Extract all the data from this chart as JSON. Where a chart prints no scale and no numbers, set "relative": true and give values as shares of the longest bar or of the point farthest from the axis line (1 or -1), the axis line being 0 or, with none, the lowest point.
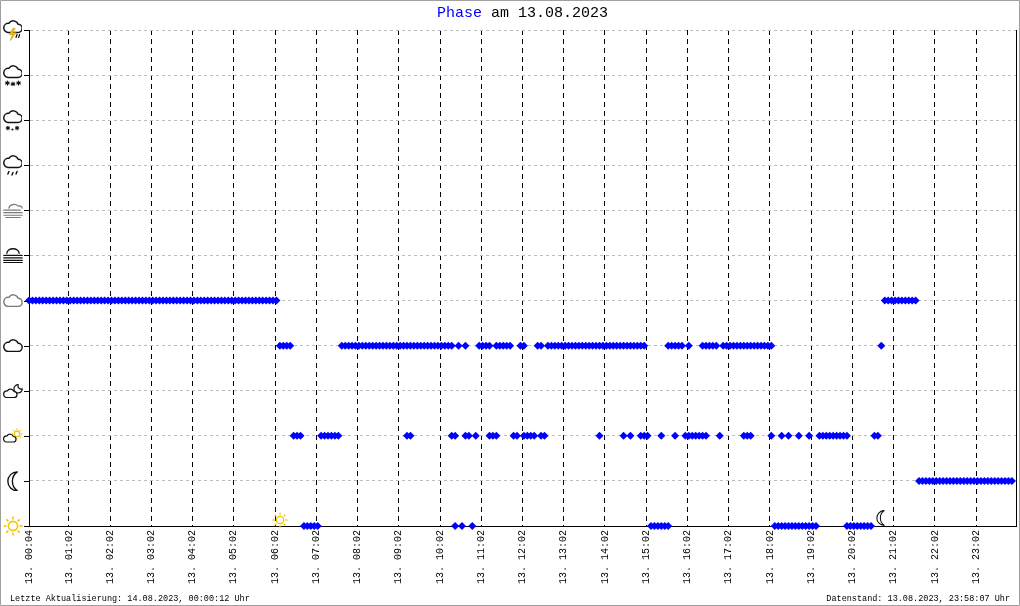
{
  "chart_data": {
    "type": "scatter",
    "title": "Phase am 13.08.2023",
    "annotations": [
      "Letzte Aktualisierung: 14.08.2023, 00:00:12 Uhr",
      "Datenstand: 13.08.2023, 23:58:07 Uhr"
    ],
    "color": "#0000ff",
    "marker": "diamond",
    "grid": true,
    "tick_labels": "x",
    "relative": true,
    "xlim": [
      "2023-08-13T00:04",
      "2023-08-14T00:00"
    ],
    "xticks": [
      {
        "value": "2023-08-13T00:04",
        "label": "13. 00:04"
      },
      {
        "value": "2023-08-13T01:02",
        "label": "13. 01:02"
      },
      {
        "value": "2023-08-13T02:02",
        "label": "13. 02:02"
      },
      {
        "value": "2023-08-13T03:02",
        "label": "13. 03:02"
      },
      {
        "value": "2023-08-13T04:02",
        "label": "13. 04:02"
      },
      {
        "value": "2023-08-13T05:02",
        "label": "13. 05:02"
      },
      {
        "value": "2023-08-13T06:02",
        "label": "13. 06:02"
      },
      {
        "value": "2023-08-13T07:02",
        "label": "13. 07:02"
      },
      {
        "value": "2023-08-13T08:02",
        "label": "13. 08:02"
      },
      {
        "value": "2023-08-13T09:02",
        "label": "13. 09:02"
      },
      {
        "value": "2023-08-13T10:02",
        "label": "13. 10:02"
      },
      {
        "value": "2023-08-13T11:02",
        "label": "13. 11:02"
      },
      {
        "value": "2023-08-13T12:02",
        "label": "13. 12:02"
      },
      {
        "value": "2023-08-13T13:02",
        "label": "13. 13:02"
      },
      {
        "value": "2023-08-13T14:02",
        "label": "13. 14:02"
      },
      {
        "value": "2023-08-13T15:02",
        "label": "13. 15:02"
      },
      {
        "value": "2023-08-13T16:02",
        "label": "13. 16:02"
      },
      {
        "value": "2023-08-13T17:02",
        "label": "13. 17:02"
      },
      {
        "value": "2023-08-13T18:02",
        "label": "13. 18:02"
      },
      {
        "value": "2023-08-13T19:02",
        "label": "13. 19:02"
      },
      {
        "value": "2023-08-13T20:02",
        "label": "13. 20:02"
      },
      {
        "value": "2023-08-13T21:02",
        "label": "13. 21:02"
      },
      {
        "value": "2023-08-13T22:02",
        "label": "13. 22:02"
      },
      {
        "value": "2023-08-13T23:02",
        "label": "13. 23:02"
      }
    ],
    "x": [
      "2023-08-13T00:04",
      "2023-08-13T00:09",
      "2023-08-13T00:14",
      "2023-08-13T00:19",
      "2023-08-13T00:24",
      "2023-08-13T00:29",
      "2023-08-13T00:34",
      "2023-08-13T00:39",
      "2023-08-13T00:44",
      "2023-08-13T00:49",
      "2023-08-13T00:54",
      "2023-08-13T00:59",
      "2023-08-13T01:04",
      "2023-08-13T01:09",
      "2023-08-13T01:14",
      "2023-08-13T01:19",
      "2023-08-13T01:24",
      "2023-08-13T01:29",
      "2023-08-13T01:34",
      "2023-08-13T01:39",
      "2023-08-13T01:44",
      "2023-08-13T01:49",
      "2023-08-13T01:54",
      "2023-08-13T01:59",
      "2023-08-13T02:04",
      "2023-08-13T02:09",
      "2023-08-13T02:14",
      "2023-08-13T02:19",
      "2023-08-13T02:24",
      "2023-08-13T02:29",
      "2023-08-13T02:34",
      "2023-08-13T02:39",
      "2023-08-13T02:44",
      "2023-08-13T02:49",
      "2023-08-13T02:54",
      "2023-08-13T02:59",
      "2023-08-13T03:04",
      "2023-08-13T03:09",
      "2023-08-13T03:14",
      "2023-08-13T03:19",
      "2023-08-13T03:24",
      "2023-08-13T03:29",
      "2023-08-13T03:34",
      "2023-08-13T03:39",
      "2023-08-13T03:44",
      "2023-08-13T03:49",
      "2023-08-13T03:54",
      "2023-08-13T03:59",
      "2023-08-13T04:04",
      "2023-08-13T04:09",
      "2023-08-13T04:14",
      "2023-08-13T04:19",
      "2023-08-13T04:24",
      "2023-08-13T04:29",
      "2023-08-13T04:34",
      "2023-08-13T04:39",
      "2023-08-13T04:44",
      "2023-08-13T04:49",
      "2023-08-13T04:54",
      "2023-08-13T04:59",
      "2023-08-13T05:04",
      "2023-08-13T05:09",
      "2023-08-13T05:14",
      "2023-08-13T05:19",
      "2023-08-13T05:24",
      "2023-08-13T05:29",
      "2023-08-13T05:34",
      "2023-08-13T05:39",
      "2023-08-13T05:44",
      "2023-08-13T05:49",
      "2023-08-13T05:54",
      "2023-08-13T05:59",
      "2023-08-13T06:04",
      "2023-08-13T06:09",
      "2023-08-13T06:14",
      "2023-08-13T06:19",
      "2023-08-13T06:24",
      "2023-08-13T06:29",
      "2023-08-13T06:34",
      "2023-08-13T06:39",
      "2023-08-13T06:44",
      "2023-08-13T06:49",
      "2023-08-13T06:54",
      "2023-08-13T06:59",
      "2023-08-13T07:04",
      "2023-08-13T07:09",
      "2023-08-13T07:14",
      "2023-08-13T07:19",
      "2023-08-13T07:24",
      "2023-08-13T07:29",
      "2023-08-13T07:34",
      "2023-08-13T07:39",
      "2023-08-13T07:44",
      "2023-08-13T07:49",
      "2023-08-13T07:54",
      "2023-08-13T07:59",
      "2023-08-13T08:04",
      "2023-08-13T08:09",
      "2023-08-13T08:14",
      "2023-08-13T08:19",
      "2023-08-13T08:24",
      "2023-08-13T08:29",
      "2023-08-13T08:34",
      "2023-08-13T08:39",
      "2023-08-13T08:44",
      "2023-08-13T08:49",
      "2023-08-13T08:54",
      "2023-08-13T08:59",
      "2023-08-13T09:04",
      "2023-08-13T09:09",
      "2023-08-13T09:14",
      "2023-08-13T09:19",
      "2023-08-13T09:24",
      "2023-08-13T09:29",
      "2023-08-13T09:34",
      "2023-08-13T09:39",
      "2023-08-13T09:44",
      "2023-08-13T09:49",
      "2023-08-13T09:54",
      "2023-08-13T09:59",
      "2023-08-13T10:04",
      "2023-08-13T10:09",
      "2023-08-13T10:14",
      "2023-08-13T10:19",
      "2023-08-13T09:14",
      "2023-08-13T09:19",
      "2023-08-13T10:19",
      "2023-08-13T10:24",
      "2023-08-13T10:24",
      "2023-08-13T10:29",
      "2023-08-13T10:34",
      "2023-08-13T10:39",
      "2023-08-13T10:39",
      "2023-08-13T10:44",
      "2023-08-13T10:49",
      "2023-08-13T10:54",
      "2023-08-13T10:59",
      "2023-08-13T11:04",
      "2023-08-13T11:09",
      "2023-08-13T11:14",
      "2023-08-13T11:14",
      "2023-08-13T11:19",
      "2023-08-13T11:24",
      "2023-08-13T11:24",
      "2023-08-13T11:29",
      "2023-08-13T11:34",
      "2023-08-13T11:39",
      "2023-08-13T11:44",
      "2023-08-13T11:49",
      "2023-08-13T11:54",
      "2023-08-13T11:59",
      "2023-08-13T12:04",
      "2023-08-13T12:04",
      "2023-08-13T12:09",
      "2023-08-13T12:14",
      "2023-08-13T12:19",
      "2023-08-13T12:24",
      "2023-08-13T12:29",
      "2023-08-13T12:29",
      "2023-08-13T12:34",
      "2023-08-13T12:39",
      "2023-08-13T12:44",
      "2023-08-13T12:49",
      "2023-08-13T12:54",
      "2023-08-13T12:59",
      "2023-08-13T13:04",
      "2023-08-13T13:09",
      "2023-08-13T13:14",
      "2023-08-13T13:19",
      "2023-08-13T13:24",
      "2023-08-13T13:29",
      "2023-08-13T13:34",
      "2023-08-13T13:39",
      "2023-08-13T13:44",
      "2023-08-13T13:49",
      "2023-08-13T13:54",
      "2023-08-13T13:59",
      "2023-08-13T14:04",
      "2023-08-13T14:09",
      "2023-08-13T14:14",
      "2023-08-13T14:19",
      "2023-08-13T14:24",
      "2023-08-13T14:29",
      "2023-08-13T14:34",
      "2023-08-13T14:39",
      "2023-08-13T14:44",
      "2023-08-13T14:49",
      "2023-08-13T14:54",
      "2023-08-13T14:59",
      "2023-08-13T13:54",
      "2023-08-13T14:29",
      "2023-08-13T14:39",
      "2023-08-13T14:54",
      "2023-08-13T14:59",
      "2023-08-13T15:04",
      "2023-08-13T15:09",
      "2023-08-13T15:14",
      "2023-08-13T15:19",
      "2023-08-13T15:24",
      "2023-08-13T15:29",
      "2023-08-13T15:34",
      "2023-08-13T15:24",
      "2023-08-13T15:34",
      "2023-08-13T15:39",
      "2023-08-13T15:44",
      "2023-08-13T15:49",
      "2023-08-13T15:54",
      "2023-08-13T15:44",
      "2023-08-13T15:59",
      "2023-08-13T16:04",
      "2023-08-13T16:09",
      "2023-08-13T16:14",
      "2023-08-13T16:19",
      "2023-08-13T16:24",
      "2023-08-13T16:29",
      "2023-08-13T16:04",
      "2023-08-13T16:24",
      "2023-08-13T16:29",
      "2023-08-13T16:34",
      "2023-08-13T16:39",
      "2023-08-13T16:44",
      "2023-08-13T16:49",
      "2023-08-13T16:54",
      "2023-08-13T16:59",
      "2023-08-13T17:04",
      "2023-08-13T17:09",
      "2023-08-13T17:14",
      "2023-08-13T17:19",
      "2023-08-13T17:24",
      "2023-08-13T17:29",
      "2023-08-13T17:34",
      "2023-08-13T17:39",
      "2023-08-13T17:44",
      "2023-08-13T17:49",
      "2023-08-13T17:54",
      "2023-08-13T17:59",
      "2023-08-13T18:04",
      "2023-08-13T17:24",
      "2023-08-13T17:29",
      "2023-08-13T17:34",
      "2023-08-13T18:04",
      "2023-08-13T18:09",
      "2023-08-13T18:14",
      "2023-08-13T18:19",
      "2023-08-13T18:24",
      "2023-08-13T18:29",
      "2023-08-13T18:34",
      "2023-08-13T18:39",
      "2023-08-13T18:44",
      "2023-08-13T18:49",
      "2023-08-13T18:54",
      "2023-08-13T18:59",
      "2023-08-13T19:04",
      "2023-08-13T19:09",
      "2023-08-13T18:19",
      "2023-08-13T18:29",
      "2023-08-13T18:44",
      "2023-08-13T18:59",
      "2023-08-13T19:14",
      "2023-08-13T19:19",
      "2023-08-13T19:24",
      "2023-08-13T19:29",
      "2023-08-13T19:34",
      "2023-08-13T19:39",
      "2023-08-13T19:44",
      "2023-08-13T19:49",
      "2023-08-13T19:54",
      "2023-08-13T19:54",
      "2023-08-13T19:59",
      "2023-08-13T20:04",
      "2023-08-13T20:09",
      "2023-08-13T20:14",
      "2023-08-13T20:19",
      "2023-08-13T20:24",
      "2023-08-13T20:29",
      "2023-08-13T20:34",
      "2023-08-13T20:39",
      "2023-08-13T20:44",
      "2023-08-13T20:49",
      "2023-08-13T20:54",
      "2023-08-13T20:59",
      "2023-08-13T21:04",
      "2023-08-13T21:09",
      "2023-08-13T21:14",
      "2023-08-13T21:19",
      "2023-08-13T21:24",
      "2023-08-13T21:29",
      "2023-08-13T21:34",
      "2023-08-13T21:39",
      "2023-08-13T21:44",
      "2023-08-13T21:49",
      "2023-08-13T21:54",
      "2023-08-13T21:59",
      "2023-08-13T22:04",
      "2023-08-13T22:09",
      "2023-08-13T22:14",
      "2023-08-13T22:19",
      "2023-08-13T22:24",
      "2023-08-13T22:29",
      "2023-08-13T22:34",
      "2023-08-13T22:39",
      "2023-08-13T22:44",
      "2023-08-13T22:49",
      "2023-08-13T22:54",
      "2023-08-13T22:59",
      "2023-08-13T23:04",
      "2023-08-13T23:09",
      "2023-08-13T23:14",
      "2023-08-13T23:19",
      "2023-08-13T23:24",
      "2023-08-13T23:29",
      "2023-08-13T23:34",
      "2023-08-13T23:39",
      "2023-08-13T23:44",
      "2023-08-13T23:49",
      "2023-08-13T23:54"
    ],
    "values": [
      1,
      1,
      1,
      1,
      1,
      1,
      1,
      1,
      1,
      1,
      1,
      1,
      1,
      1,
      1,
      1,
      1,
      1,
      1,
      1,
      1,
      1,
      1,
      1,
      1,
      1,
      1,
      1,
      1,
      1,
      1,
      1,
      1,
      1,
      1,
      1,
      1,
      1,
      1,
      1,
      1,
      1,
      1,
      1,
      1,
      1,
      1,
      1,
      1,
      1,
      1,
      1,
      1,
      1,
      1,
      1,
      1,
      1,
      1,
      1,
      1,
      1,
      1,
      1,
      1,
      1,
      1,
      1,
      1,
      1,
      1,
      1,
      1,
      0.8,
      0.8,
      0.8,
      0.8,
      0.4,
      0.4,
      0.4,
      0,
      0,
      0,
      0,
      0,
      0.4,
      0.4,
      0.4,
      0.4,
      0.4,
      0.4,
      0.8,
      0.8,
      0.8,
      0.8,
      0.8,
      0.8,
      0.8,
      0.8,
      0.8,
      0.8,
      0.8,
      0.8,
      0.8,
      0.8,
      0.8,
      0.8,
      0.8,
      0.8,
      0.8,
      0.8,
      0.8,
      0.8,
      0.8,
      0.8,
      0.8,
      0.8,
      0.8,
      0.8,
      0.8,
      0.8,
      0.8,
      0.8,
      0.8,
      0.4,
      0.4,
      0.4,
      0.4,
      0,
      0.8,
      0,
      0.8,
      0.4,
      0.4,
      0,
      0.4,
      0.8,
      0.8,
      0.8,
      0.8,
      0.4,
      0.4,
      0.4,
      0.8,
      0.8,
      0.8,
      0.8,
      0.8,
      0.4,
      0.4,
      0.8,
      0.8,
      0.4,
      0.4,
      0.4,
      0.4,
      0.8,
      0.8,
      0.4,
      0.4,
      0.8,
      0.8,
      0.8,
      0.8,
      0.8,
      0.8,
      0.8,
      0.8,
      0.8,
      0.8,
      0.8,
      0.8,
      0.8,
      0.8,
      0.8,
      0.8,
      0.8,
      0.8,
      0.8,
      0.8,
      0.8,
      0.8,
      0.8,
      0.8,
      0.8,
      0.8,
      0.8,
      0.8,
      0.8,
      0.4,
      0.4,
      0.4,
      0.4,
      0.4,
      0.4,
      0,
      0,
      0,
      0,
      0,
      0,
      0.4,
      0.8,
      0.8,
      0.8,
      0.8,
      0.8,
      0.4,
      0.4,
      0.4,
      0.4,
      0.4,
      0.4,
      0.4,
      0.4,
      0.8,
      0.8,
      0.8,
      0.8,
      0.8,
      0.8,
      0.4,
      0.8,
      0.8,
      0.8,
      0.8,
      0.8,
      0.8,
      0.8,
      0.8,
      0.8,
      0.8,
      0.8,
      0.8,
      0.8,
      0.8,
      0.8,
      0.4,
      0.4,
      0.4,
      0.4,
      0,
      0,
      0,
      0,
      0,
      0,
      0,
      0,
      0,
      0,
      0,
      0,
      0,
      0.4,
      0.4,
      0.4,
      0.4,
      0.4,
      0.4,
      0.4,
      0.4,
      0.4,
      0.4,
      0.4,
      0.4,
      0.4,
      0,
      0,
      0,
      0,
      0,
      0,
      0,
      0,
      0.4,
      0.4,
      0.8,
      1,
      1,
      1,
      1,
      1,
      1,
      1,
      1,
      1,
      1,
      0.2,
      0.2,
      0.2,
      0.2,
      0.2,
      0.2,
      0.2,
      0.2,
      0.2,
      0.2,
      0.2,
      0.2,
      0.2,
      0.2,
      0.2,
      0.2,
      0.2,
      0.2,
      0.2,
      0.2,
      0.2,
      0.2,
      0.2,
      0.2,
      0.2,
      0.2,
      0.2,
      0.2
    ]
  }
}
